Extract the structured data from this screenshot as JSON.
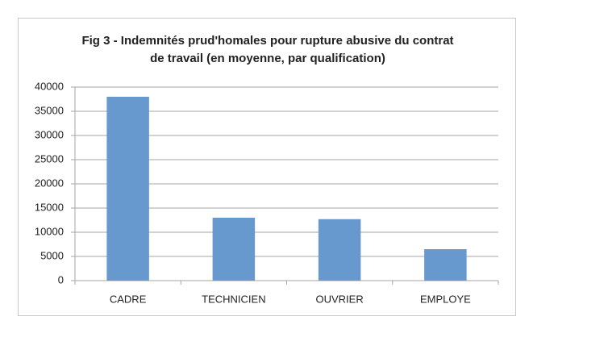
{
  "chart_data": {
    "type": "bar",
    "title": "Fig 3 - Indemnités prud'homales pour rupture abusive du contrat de travail (en moyenne, par qualification)",
    "categories": [
      "CADRE",
      "TECHNICIEN",
      "OUVRIER",
      "EMPLOYE"
    ],
    "values": [
      38000,
      13000,
      12700,
      6500
    ],
    "color": "#6799cf",
    "ylim": [
      0,
      40000
    ],
    "yticks": [
      0,
      5000,
      10000,
      15000,
      20000,
      25000,
      30000,
      35000,
      40000
    ],
    "grid": true
  }
}
